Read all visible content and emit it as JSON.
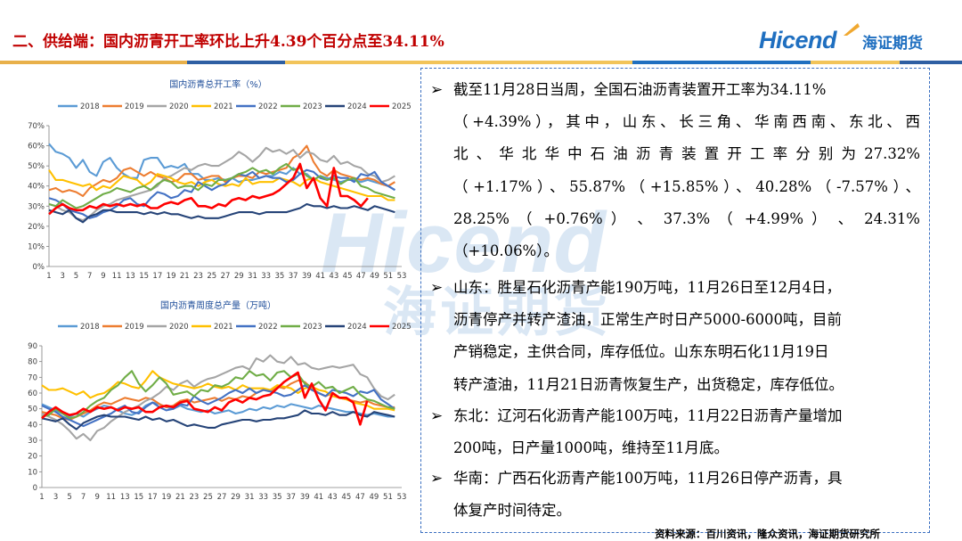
{
  "header": {
    "title": "二、供给端：国内沥青开工率环比上升4.39个百分点至34.11%",
    "logo_text": "Hicend",
    "logo_cn": "海证期货",
    "stripe_colors": [
      "#e8b04a",
      "#2e5fa3",
      "#f2c45a",
      "#1f6fc0",
      "#f2c45a",
      "#2e5fa3"
    ]
  },
  "watermark": {
    "text": "Hicend",
    "cn": "海证期货"
  },
  "colors": {
    "2018": "#5b9bd5",
    "2019": "#ed7d31",
    "2020": "#a5a5a5",
    "2021": "#ffc000",
    "2022": "#4472c4",
    "2023": "#70ad47",
    "2024": "#264478",
    "2025": "#ff0000"
  },
  "chart_data": [
    {
      "type": "line",
      "title": "国内沥青总开工率（%）",
      "x": [
        1,
        2,
        3,
        4,
        5,
        6,
        7,
        8,
        9,
        10,
        11,
        12,
        13,
        14,
        15,
        16,
        17,
        18,
        19,
        20,
        21,
        22,
        23,
        24,
        25,
        26,
        27,
        28,
        29,
        30,
        31,
        32,
        33,
        34,
        35,
        36,
        37,
        38,
        39,
        40,
        41,
        42,
        43,
        44,
        45,
        46,
        47,
        48,
        49,
        50,
        51,
        52,
        53
      ],
      "xticks": [
        1,
        3,
        5,
        7,
        9,
        11,
        13,
        15,
        17,
        19,
        21,
        23,
        25,
        27,
        29,
        31,
        33,
        35,
        37,
        39,
        41,
        43,
        45,
        47,
        49,
        51,
        53
      ],
      "yticks": [
        "0%",
        "10%",
        "20%",
        "30%",
        "40%",
        "50%",
        "60%",
        "70%"
      ],
      "ylim": [
        0,
        70
      ],
      "legend": "top",
      "series": [
        {
          "name": "2018",
          "values": [
            61,
            57,
            56,
            54,
            49,
            53,
            47,
            45,
            52,
            54,
            49,
            46,
            44,
            44,
            53,
            54,
            54,
            49,
            50,
            49,
            51,
            46,
            46,
            43,
            43,
            44,
            43,
            44,
            42,
            43,
            43,
            44,
            45,
            45,
            47,
            46,
            49,
            46,
            46,
            43,
            45,
            44,
            43,
            42,
            43,
            43,
            42,
            43,
            42,
            41,
            40,
            38,
            null
          ]
        },
        {
          "name": "2019",
          "values": [
            38,
            39,
            37,
            38,
            37,
            35,
            39,
            41,
            43,
            42,
            44,
            48,
            49,
            47,
            45,
            47,
            45,
            44,
            42,
            43,
            46,
            46,
            43,
            44,
            45,
            45,
            42,
            44,
            45,
            45,
            44,
            47,
            46,
            47,
            48,
            49,
            54,
            56,
            60,
            52,
            47,
            45,
            48,
            46,
            45,
            44,
            43,
            44,
            43,
            41,
            40,
            42,
            null
          ]
        },
        {
          "name": "2020",
          "values": [
            31,
            30,
            28,
            27,
            24,
            23,
            25,
            28,
            30,
            31,
            33,
            34,
            35,
            36,
            37,
            38,
            40,
            44,
            45,
            47,
            49,
            48,
            50,
            51,
            50,
            50,
            52,
            54,
            57,
            55,
            52,
            55,
            59,
            57,
            58,
            56,
            58,
            54,
            57,
            56,
            53,
            52,
            55,
            51,
            52,
            50,
            49,
            46,
            45,
            42,
            43,
            45,
            null
          ]
        },
        {
          "name": "2021",
          "values": [
            48,
            43,
            43,
            42,
            41,
            40,
            41,
            38,
            40,
            39,
            42,
            45,
            44,
            43,
            40,
            42,
            46,
            45,
            44,
            42,
            41,
            42,
            40,
            42,
            43,
            41,
            40,
            41,
            40,
            44,
            41,
            42,
            42,
            42,
            44,
            43,
            42,
            40,
            43,
            44,
            42,
            41,
            40,
            39,
            38,
            37,
            36,
            35,
            35,
            35,
            33,
            33,
            null
          ]
        },
        {
          "name": "2022",
          "values": [
            34,
            33,
            31,
            28,
            27,
            26,
            24,
            25,
            27,
            28,
            30,
            33,
            34,
            31,
            30,
            34,
            37,
            36,
            34,
            35,
            38,
            37,
            42,
            40,
            38,
            40,
            41,
            44,
            46,
            45,
            47,
            44,
            45,
            44,
            44,
            42,
            43,
            46,
            48,
            47,
            44,
            43,
            45,
            44,
            44,
            42,
            46,
            45,
            47,
            42,
            40,
            38,
            null
          ]
        },
        {
          "name": "2023",
          "values": [
            31,
            30,
            33,
            31,
            29,
            30,
            32,
            34,
            36,
            37,
            39,
            38,
            37,
            39,
            40,
            38,
            41,
            43,
            42,
            39,
            40,
            40,
            38,
            41,
            40,
            43,
            43,
            44,
            46,
            47,
            49,
            47,
            48,
            46,
            49,
            51,
            48,
            49,
            45,
            43,
            45,
            43,
            44,
            41,
            43,
            44,
            40,
            39,
            37,
            36,
            35,
            34,
            null
          ]
        },
        {
          "name": "2024",
          "values": [
            28,
            27,
            26,
            28,
            24,
            22,
            25,
            26,
            28,
            28,
            27,
            27,
            27,
            27,
            26,
            27,
            26,
            27,
            26,
            26,
            25,
            24,
            25,
            24,
            24,
            24,
            25,
            26,
            27,
            27,
            27,
            26,
            27,
            27,
            27,
            27,
            28,
            29,
            31,
            30,
            30,
            29,
            30,
            29,
            29,
            30,
            29,
            28,
            30,
            29,
            28,
            27,
            null
          ]
        },
        {
          "name": "2025",
          "values": [
            26,
            29,
            31,
            29,
            28,
            28,
            30,
            29,
            31,
            30,
            31,
            30,
            31,
            30,
            31,
            29,
            29,
            31,
            32,
            31,
            33,
            34,
            30,
            30,
            29,
            31,
            30,
            33,
            34,
            33,
            35,
            34,
            35,
            36,
            38,
            41,
            44,
            51,
            39,
            44,
            34,
            30,
            49,
            35,
            35,
            33,
            30,
            34,
            null,
            null,
            null,
            null,
            null
          ]
        }
      ]
    },
    {
      "type": "line",
      "title": "国内沥青周度总产量（万吨）",
      "x": [
        1,
        2,
        3,
        4,
        5,
        6,
        7,
        8,
        9,
        10,
        11,
        12,
        13,
        14,
        15,
        16,
        17,
        18,
        19,
        20,
        21,
        22,
        23,
        24,
        25,
        26,
        27,
        28,
        29,
        30,
        31,
        32,
        33,
        34,
        35,
        36,
        37,
        38,
        39,
        40,
        41,
        42,
        43,
        44,
        45,
        46,
        47,
        48,
        49,
        50,
        51,
        52,
        53
      ],
      "xticks": [
        1,
        3,
        5,
        7,
        9,
        11,
        13,
        15,
        17,
        19,
        21,
        23,
        25,
        27,
        29,
        31,
        33,
        35,
        37,
        39,
        41,
        43,
        45,
        47,
        49,
        51,
        53
      ],
      "yticks": [
        "0",
        "10",
        "20",
        "30",
        "40",
        "50",
        "60",
        "70",
        "80",
        "90"
      ],
      "ylim": [
        0,
        90
      ],
      "legend": "top",
      "series": [
        {
          "name": "2018",
          "values": [
            53,
            51,
            49,
            47,
            45,
            47,
            45,
            48,
            50,
            52,
            51,
            49,
            47,
            46,
            48,
            52,
            54,
            53,
            51,
            50,
            52,
            50,
            49,
            48,
            49,
            47,
            48,
            49,
            47,
            48,
            50,
            49,
            51,
            50,
            52,
            51,
            53,
            52,
            51,
            50,
            52,
            51,
            50,
            49,
            48,
            48,
            47,
            46,
            47,
            46,
            45,
            45,
            null
          ]
        },
        {
          "name": "2019",
          "values": [
            48,
            47,
            46,
            44,
            43,
            45,
            47,
            49,
            52,
            54,
            53,
            55,
            57,
            56,
            55,
            57,
            56,
            53,
            51,
            52,
            55,
            56,
            54,
            55,
            56,
            57,
            55,
            57,
            56,
            58,
            57,
            60,
            62,
            61,
            64,
            63,
            66,
            68,
            67,
            63,
            60,
            58,
            60,
            57,
            56,
            55,
            54,
            55,
            53,
            52,
            51,
            51,
            null
          ]
        },
        {
          "name": "2020",
          "values": [
            47,
            45,
            43,
            40,
            36,
            31,
            34,
            30,
            36,
            38,
            42,
            45,
            48,
            50,
            52,
            55,
            57,
            60,
            64,
            62,
            66,
            68,
            64,
            67,
            69,
            70,
            72,
            74,
            76,
            77,
            75,
            82,
            80,
            84,
            80,
            79,
            83,
            78,
            79,
            76,
            75,
            76,
            77,
            76,
            77,
            78,
            72,
            70,
            63,
            58,
            56,
            59,
            null
          ]
        },
        {
          "name": "2021",
          "values": [
            65,
            62,
            62,
            63,
            61,
            59,
            61,
            57,
            59,
            60,
            63,
            67,
            66,
            64,
            63,
            68,
            74,
            70,
            68,
            66,
            65,
            64,
            63,
            64,
            66,
            64,
            63,
            64,
            62,
            65,
            63,
            63,
            63,
            62,
            65,
            64,
            63,
            60,
            63,
            64,
            62,
            61,
            58,
            57,
            56,
            54,
            53,
            52,
            50,
            50,
            50,
            49,
            null
          ]
        },
        {
          "name": "2022",
          "values": [
            52,
            50,
            48,
            45,
            43,
            41,
            39,
            41,
            43,
            45,
            47,
            50,
            52,
            48,
            47,
            51,
            54,
            51,
            49,
            50,
            53,
            52,
            58,
            55,
            53,
            55,
            57,
            60,
            62,
            60,
            63,
            60,
            62,
            61,
            60,
            58,
            59,
            62,
            65,
            62,
            60,
            58,
            62,
            61,
            60,
            58,
            61,
            60,
            62,
            56,
            53,
            50,
            null
          ]
        },
        {
          "name": "2023",
          "values": [
            45,
            46,
            50,
            47,
            44,
            45,
            48,
            52,
            55,
            57,
            62,
            65,
            70,
            74,
            66,
            61,
            65,
            70,
            66,
            59,
            60,
            61,
            58,
            62,
            61,
            65,
            64,
            66,
            70,
            69,
            74,
            71,
            72,
            68,
            73,
            74,
            70,
            72,
            66,
            64,
            67,
            63,
            64,
            60,
            62,
            64,
            59,
            56,
            55,
            53,
            51,
            50,
            null
          ]
        },
        {
          "name": "2024",
          "values": [
            44,
            43,
            42,
            44,
            40,
            37,
            41,
            43,
            45,
            46,
            45,
            45,
            45,
            44,
            43,
            45,
            43,
            44,
            42,
            43,
            41,
            39,
            40,
            39,
            38,
            38,
            40,
            41,
            42,
            43,
            43,
            42,
            43,
            43,
            44,
            44,
            45,
            46,
            49,
            47,
            47,
            46,
            48,
            46,
            46,
            48,
            46,
            45,
            48,
            47,
            46,
            45,
            null
          ]
        },
        {
          "name": "2025",
          "values": [
            44,
            48,
            51,
            48,
            46,
            47,
            50,
            48,
            51,
            50,
            51,
            49,
            51,
            50,
            51,
            48,
            48,
            51,
            52,
            51,
            54,
            55,
            50,
            49,
            48,
            51,
            49,
            54,
            56,
            54,
            57,
            56,
            58,
            59,
            63,
            67,
            70,
            73,
            57,
            66,
            56,
            49,
            60,
            57,
            57,
            54,
            40,
            55,
            null,
            null,
            null,
            null,
            null
          ]
        }
      ]
    }
  ],
  "panel": {
    "bullets": [
      {
        "lines": [
          {
            "text": "截至11月28日当周，全国石油沥青装置开工率为34.11%",
            "justify": false
          },
          {
            "text": "（+4.39%），其中，山东、长三角、华南西南、东北、西",
            "justify": true
          },
          {
            "text": "北、华北华中石油沥青装置开工率分别为27.32%",
            "justify": true
          },
          {
            "text": "（+1.17%）、55.87%（+15.85%）、40.28%（-7.57%）、",
            "justify": true
          },
          {
            "text": "28.25% （ +0.76% ） 、 37.3% （ +4.99% ） 、 24.31%",
            "justify": true
          },
          {
            "text": "（+10.06%）。",
            "justify": false
          }
        ]
      },
      {
        "lines": [
          {
            "text": "山东：胜星石化沥青产能190万吨，11月26日至12月4日，",
            "justify": false
          },
          {
            "text": "沥青停产并转产渣油，正常生产时日产5000-6000吨，目前",
            "justify": false
          },
          {
            "text": "产销稳定，主供合同，库存低位。山东东明石化11月19日",
            "justify": false
          },
          {
            "text": "转产渣油，11月21日沥青恢复生产，出货稳定，库存低位。",
            "justify": false
          }
        ]
      },
      {
        "lines": [
          {
            "text": "东北：辽河石化沥青产能100万吨，11月22日沥青产量增加",
            "justify": false
          },
          {
            "text": "200吨，日产量1000吨，维持至11月底。",
            "justify": false
          }
        ]
      },
      {
        "lines": [
          {
            "text": "华南：广西石化沥青产能100万吨，11月26日停产沥青，具",
            "justify": false
          },
          {
            "text": "体复产时间待定。",
            "justify": false
          }
        ]
      }
    ],
    "bullet_symbol": "➢"
  },
  "footer": {
    "source": "资料来源：百川资讯，隆众资讯，海证期货研究所"
  }
}
